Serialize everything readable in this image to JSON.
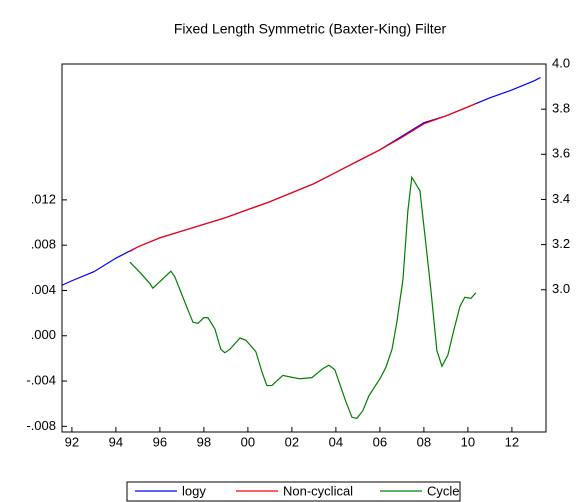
{
  "chart_data": {
    "type": "line",
    "title": "Fixed Length Symmetric (Baxter-King) Filter",
    "xlim": [
      1991.55,
      2013.55
    ],
    "xticks": [
      {
        "value": 1992,
        "label": "92"
      },
      {
        "value": 1994,
        "label": "94"
      },
      {
        "value": 1996,
        "label": "96"
      },
      {
        "value": 1998,
        "label": "98"
      },
      {
        "value": 2000,
        "label": "00"
      },
      {
        "value": 2002,
        "label": "02"
      },
      {
        "value": 2004,
        "label": "04"
      },
      {
        "value": 2006,
        "label": "06"
      },
      {
        "value": 2008,
        "label": "08"
      },
      {
        "value": 2010,
        "label": "10"
      },
      {
        "value": 2012,
        "label": "12"
      }
    ],
    "ylim": [
      -0.0085,
      0.024
    ],
    "yticks": [
      {
        "value": -0.008,
        "label": "-.008"
      },
      {
        "value": -0.004,
        "label": "-.004"
      },
      {
        "value": 0,
        "label": ".000"
      },
      {
        "value": 0.004,
        "label": ".004"
      },
      {
        "value": 0.008,
        "label": ".008"
      },
      {
        "value": 0.012,
        "label": ".012"
      }
    ],
    "y2lim": [
      2.37,
      4.0
    ],
    "y2ticks": [
      {
        "value": 3,
        "label": "3.0"
      },
      3.2,
      3.4,
      3.6,
      3.8,
      {
        "value": 4,
        "label": "4.0"
      }
    ],
    "legend": "bottom",
    "series": [
      {
        "name": "logy",
        "color": "#0000ff",
        "axis": "y2",
        "x": [
          1991.55,
          1992,
          1993,
          1994,
          1995,
          1996,
          1997,
          1998,
          1999,
          2000,
          2001,
          2002,
          2003,
          2004,
          2005,
          2006,
          2007,
          2008,
          2009,
          2010,
          2011,
          2012,
          2013,
          2013.3
        ],
        "values": [
          3.02,
          3.04,
          3.08,
          3.14,
          3.19,
          3.23,
          3.26,
          3.29,
          3.32,
          3.355,
          3.39,
          3.43,
          3.47,
          3.52,
          3.57,
          3.62,
          3.68,
          3.74,
          3.77,
          3.81,
          3.85,
          3.885,
          3.925,
          3.94
        ]
      },
      {
        "name": "Non-cyclical",
        "color": "#ff0000",
        "axis": "y2",
        "x": [
          1994.64,
          1995,
          1996,
          1997,
          1998,
          1999,
          2000,
          2001,
          2002,
          2003,
          2004,
          2005,
          2006,
          2007,
          2008,
          2009,
          2010,
          2010.36
        ],
        "values": [
          3.17,
          3.19,
          3.23,
          3.26,
          3.29,
          3.32,
          3.355,
          3.39,
          3.43,
          3.47,
          3.52,
          3.57,
          3.62,
          3.675,
          3.735,
          3.77,
          3.81,
          3.825
        ]
      },
      {
        "name": "Cycle",
        "color": "#008000",
        "axis": "y",
        "x": [
          1994.64,
          1995.09,
          1995.55,
          1995.68,
          1996.23,
          1996.5,
          1996.68,
          1997.23,
          1997.5,
          1997.73,
          1998.0,
          1998.18,
          1998.5,
          1998.77,
          1998.95,
          1999.18,
          1999.64,
          1999.91,
          2000.36,
          2000.64,
          2000.86,
          2001.09,
          2001.36,
          2001.59,
          2001.82,
          2002.36,
          2002.91,
          2003.41,
          2003.68,
          2003.95,
          2004.45,
          2004.73,
          2004.95,
          2005.23,
          2005.5,
          2006.0,
          2006.27,
          2006.55,
          2006.77,
          2007.05,
          2007.27,
          2007.45,
          2007.82,
          2008.05,
          2008.32,
          2008.59,
          2008.82,
          2009.09,
          2009.36,
          2009.64,
          2009.86,
          2010.14,
          2010.36
        ],
        "values": [
          0.0065,
          0.0056,
          0.0046,
          0.0042,
          0.0052,
          0.0057,
          0.0052,
          0.0025,
          0.0012,
          0.0011,
          0.0016,
          0.0016,
          0.0006,
          -0.0012,
          -0.0015,
          -0.0012,
          -0.0002,
          -0.0004,
          -0.0014,
          -0.0032,
          -0.0044,
          -0.0044,
          -0.0039,
          -0.0035,
          -0.0036,
          -0.0038,
          -0.0037,
          -0.0029,
          -0.0026,
          -0.003,
          -0.0058,
          -0.0072,
          -0.0073,
          -0.0066,
          -0.0053,
          -0.0038,
          -0.0028,
          -0.0012,
          0.0012,
          0.005,
          0.011,
          0.014,
          0.0128,
          0.0088,
          0.004,
          -0.0013,
          -0.0027,
          -0.0017,
          0.0005,
          0.0026,
          0.0034,
          0.0033,
          0.0038
        ]
      }
    ]
  }
}
